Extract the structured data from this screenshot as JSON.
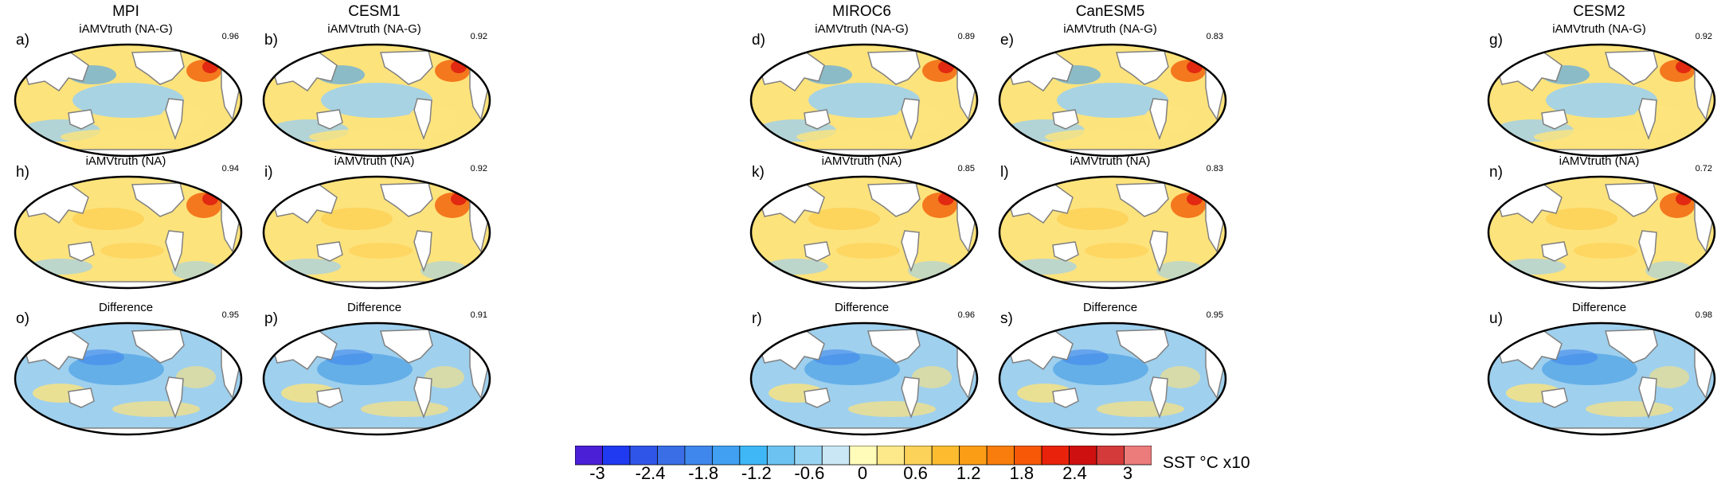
{
  "models": [
    {
      "name": "MPI",
      "panels": [
        {
          "letter": "a)",
          "title": "iAMVtruth (NA-G)",
          "corr": "0.96",
          "type": "nag"
        },
        {
          "letter": "h)",
          "title": "iAMVtruth (NA)",
          "corr": "0.94",
          "type": "na"
        },
        {
          "letter": "o)",
          "title": "Difference",
          "corr": "0.95",
          "type": "diff"
        }
      ]
    },
    {
      "name": "CESM1",
      "panels": [
        {
          "letter": "b)",
          "title": "iAMVtruth (NA-G)",
          "corr": "0.92",
          "type": "nag"
        },
        {
          "letter": "i)",
          "title": "iAMVtruth (NA)",
          "corr": "0.92",
          "type": "na"
        },
        {
          "letter": "p)",
          "title": "Difference",
          "corr": "0.91",
          "type": "diff"
        }
      ]
    },
    {
      "name": "MIROC6",
      "panels": [
        {
          "letter": "d)",
          "title": "iAMVtruth (NA-G)",
          "corr": "0.89",
          "type": "nag"
        },
        {
          "letter": "k)",
          "title": "iAMVtruth (NA)",
          "corr": "0.85",
          "type": "na"
        },
        {
          "letter": "r)",
          "title": "Difference",
          "corr": "0.96",
          "type": "diff"
        }
      ]
    },
    {
      "name": "CanESM5",
      "panels": [
        {
          "letter": "e)",
          "title": "iAMVtruth (NA-G)",
          "corr": "0.83",
          "type": "nag"
        },
        {
          "letter": "l)",
          "title": "iAMVtruth (NA)",
          "corr": "0.83",
          "type": "na"
        },
        {
          "letter": "s)",
          "title": "Difference",
          "corr": "0.95",
          "type": "diff"
        }
      ]
    },
    {
      "name": "CESM2",
      "panels": [
        {
          "letter": "g)",
          "title": "iAMVtruth (NA-G)",
          "corr": "0.92",
          "type": "nag"
        },
        {
          "letter": "n)",
          "title": "iAMVtruth (NA)",
          "corr": "0.72",
          "type": "na"
        },
        {
          "letter": "u)",
          "title": "Difference",
          "corr": "0.98",
          "type": "diff"
        }
      ]
    }
  ],
  "colorbar": {
    "unit": "SST °C x10",
    "ticks": [
      "-3",
      "-2.4",
      "-1.8",
      "-1.2",
      "-0.6",
      "0",
      "0.6",
      "1.2",
      "1.8",
      "2.4",
      "3"
    ],
    "colors": [
      "#4a1fd6",
      "#1f3af0",
      "#2f55e8",
      "#3a6ee6",
      "#3f87ec",
      "#41a0f2",
      "#3fb7f6",
      "#6cc3f2",
      "#9ad4f3",
      "#c9e7f4",
      "#fffbb8",
      "#fde88a",
      "#fdd259",
      "#fdbc2f",
      "#fb9e16",
      "#f97d0c",
      "#f65808",
      "#e8220b",
      "#cf1010",
      "#d43a3a",
      "#ec7b7b"
    ]
  },
  "colors": {
    "land": "#ffffff",
    "coast": "#808080",
    "cold": "#9fd0ee",
    "warm": "#fde37c",
    "hot": "#f36b14"
  }
}
